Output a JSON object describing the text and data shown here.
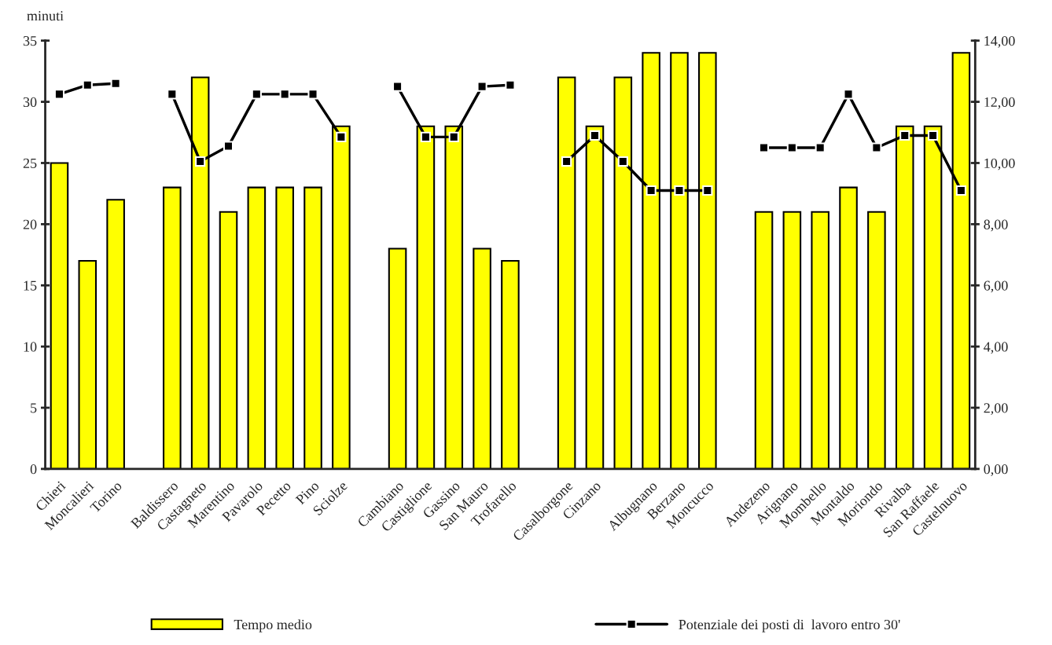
{
  "chart_data": {
    "type": "bar",
    "ylabel": "minuti",
    "categories": [
      "Chieri",
      "Moncalieri",
      "Torino",
      null,
      "Baldissero",
      "Castagneto",
      "Marentino",
      "Pavarolo",
      "Pecetto",
      "Pino",
      "Sciolze",
      null,
      "Cambiano",
      "Castiglione",
      "Gassino",
      "San Mauro",
      "Trofarello",
      null,
      "Casalborgone",
      "Cinzano",
      null,
      "Albugnano",
      "Berzano",
      "Moncucco",
      null,
      "Andezeno",
      "Arignano",
      "Mombello",
      "Montaldo",
      "Moriondo",
      "Rivalba",
      "San Raffaele",
      "Castelnuovo"
    ],
    "series": [
      {
        "name": "Tempo medio",
        "color": "#ffff00",
        "values": [
          25,
          17,
          22,
          null,
          23,
          32,
          21,
          23,
          23,
          23,
          28,
          null,
          18,
          28,
          28,
          18,
          17,
          null,
          32,
          28,
          32,
          34,
          34,
          34,
          null,
          21,
          21,
          21,
          23,
          21,
          28,
          28,
          34
        ]
      },
      {
        "name": "Potenziale dei posti di  lavoro entro 30'",
        "type": "line",
        "axis": "y2",
        "color": "#000000",
        "marker": "square",
        "values": [
          12.25,
          12.55,
          12.6,
          null,
          12.25,
          10.05,
          10.55,
          12.25,
          12.25,
          12.25,
          10.85,
          null,
          12.5,
          10.85,
          10.85,
          12.5,
          12.55,
          null,
          10.05,
          10.9,
          10.05,
          9.1,
          9.1,
          9.1,
          null,
          10.5,
          10.5,
          10.5,
          12.25,
          10.5,
          10.9,
          10.9,
          9.1
        ]
      }
    ],
    "ylim": [
      0,
      35
    ],
    "yticks": [
      0,
      5,
      10,
      15,
      20,
      25,
      30,
      35
    ],
    "y2lim": [
      0,
      14
    ],
    "y2ticks": [
      {
        "value": 0,
        "label": "0,00"
      },
      {
        "value": 2,
        "label": "2,00"
      },
      {
        "value": 4,
        "label": "4,00"
      },
      {
        "value": 6,
        "label": "6,00"
      },
      {
        "value": 8,
        "label": "8,00"
      },
      {
        "value": 10,
        "label": "10,00"
      },
      {
        "value": 12,
        "label": "12,00"
      },
      {
        "value": 14,
        "label": "14,00"
      }
    ],
    "grid": false,
    "legend": "bottom"
  }
}
